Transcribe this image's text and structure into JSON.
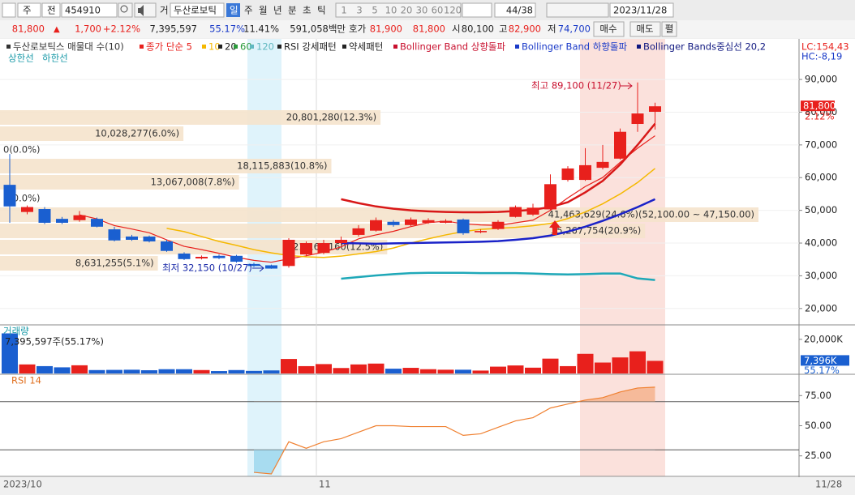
{
  "toolbar": [
    "주",
    "전",
    "454910",
    "거",
    "두산로보틱",
    "일",
    "주",
    "월",
    "년",
    "분",
    "초",
    "틱",
    "1",
    "3",
    "5",
    "10",
    "20",
    "30",
    "60",
    "120",
    "44/38",
    "2023/11/28"
  ],
  "quote": [
    "81,800",
    "▲",
    "1,700",
    "+2.12%",
    "7,395,597",
    "55.17%",
    "11.41%",
    "591,058백만",
    "호가",
    "81,900",
    "81,800",
    "시",
    "80,100",
    "고",
    "82,900",
    "저",
    "74,700",
    "매수",
    "매도",
    "펼"
  ],
  "legend": [
    {
      "text": "두산로보틱스 매물대 수(10)",
      "color": "#333333"
    },
    {
      "text": "종가 단순 5",
      "color": "#e8201c"
    },
    {
      "text": "10",
      "color": "#f5b800"
    },
    {
      "text": "20",
      "color": "#222222"
    },
    {
      "text": "60",
      "color": "#2a9a3a"
    },
    {
      "text": "120",
      "color": "#60b8c0"
    },
    {
      "text": "RSI 강세패턴",
      "color": "#222222"
    },
    {
      "text": "약세패턴",
      "color": "#222222"
    },
    {
      "text": "Bollinger Band 상향돌파",
      "color": "#c8102e"
    },
    {
      "text": "Bollinger Band 하향돌파",
      "color": "#1a3ac8"
    },
    {
      "text": "Bollinger Bands중심선 20,2",
      "color": "#101880"
    }
  ],
  "legend2": [
    "상한선",
    "하한선"
  ],
  "corner": [
    "LC:154,43",
    "HC:-8,19"
  ],
  "price_chart": {
    "type": "candlestick",
    "ylim": [
      15000,
      102400
    ],
    "yticks": [
      {
        "value": 90000,
        "label": "90,000"
      },
      {
        "value": 80000,
        "label": "80,000"
      },
      {
        "value": 70000,
        "label": "70,000"
      },
      {
        "value": 60000,
        "label": "60,000"
      },
      {
        "value": 50000,
        "label": "50,000"
      },
      {
        "value": 40000,
        "label": "40,000"
      },
      {
        "value": 30000,
        "label": "30,000"
      },
      {
        "value": 20000,
        "label": "20,000"
      }
    ],
    "up_color": "#e8201c",
    "down_color": "#1a5fd0",
    "open": [
      57800,
      49500,
      50400,
      47400,
      47000,
      47400,
      44200,
      42000,
      42000,
      40500,
      36800,
      35300,
      36100,
      36100,
      33600,
      33200,
      33000,
      36500,
      37000,
      40000,
      42500,
      43800,
      46500,
      45500,
      46200,
      46200,
      47200,
      43300,
      44300,
      48000,
      48700,
      50300,
      59300,
      59300,
      63000,
      65800,
      76400,
      80100
    ],
    "high": [
      67200,
      51500,
      51000,
      48000,
      49800,
      47800,
      45000,
      42500,
      42300,
      41000,
      37200,
      36200,
      36500,
      36400,
      34000,
      33400,
      41500,
      40500,
      41000,
      42000,
      45500,
      47800,
      47000,
      47800,
      47600,
      47300,
      47500,
      44200,
      47000,
      51500,
      52000,
      61000,
      63500,
      69000,
      70000,
      75000,
      89100,
      82900
    ],
    "low": [
      46200,
      48800,
      45800,
      45800,
      46500,
      44800,
      40500,
      40700,
      40200,
      37300,
      34800,
      35000,
      35100,
      34000,
      32700,
      32150,
      32500,
      36000,
      36600,
      39500,
      42000,
      43500,
      45000,
      45200,
      45900,
      46000,
      42500,
      43000,
      44000,
      47800,
      48300,
      50000,
      58800,
      59000,
      62500,
      65500,
      74000,
      74700
    ],
    "close": [
      51200,
      51000,
      46200,
      46200,
      48500,
      45000,
      40800,
      41000,
      40500,
      37600,
      35100,
      35800,
      35400,
      34300,
      33000,
      32200,
      41000,
      40000,
      40000,
      41000,
      44500,
      47000,
      45500,
      47200,
      47000,
      46800,
      43000,
      43700,
      46500,
      51000,
      50800,
      58000,
      62800,
      63800,
      64800,
      74000,
      79600,
      81800
    ],
    "lines": [
      {
        "color": "#e8201c",
        "width": 1.2,
        "values": [
          null,
          null,
          null,
          null,
          48620,
          47380,
          45340,
          44300,
          43160,
          40980,
          39000,
          38000,
          36880,
          35640,
          34720,
          34140,
          35180,
          36100,
          37240,
          38840,
          41300,
          42500,
          43600,
          45040,
          46240,
          46700,
          45900,
          45540,
          45400,
          46200,
          47000,
          50000,
          53820,
          57280,
          60040,
          64680,
          69000,
          72800
        ]
      },
      {
        "color": "#f5b800",
        "width": 1.5,
        "values": [
          null,
          null,
          null,
          null,
          null,
          null,
          null,
          null,
          null,
          44500,
          43500,
          42000,
          40500,
          39300,
          38000,
          37000,
          36200,
          35800,
          35600,
          36000,
          36700,
          37400,
          38500,
          40000,
          41300,
          42500,
          43500,
          44200,
          44500,
          44800,
          45300,
          46000,
          47500,
          49500,
          52000,
          55000,
          58500,
          62800
        ]
      },
      {
        "color": "#d81818",
        "width": 2.5,
        "values": [
          null,
          null,
          null,
          null,
          null,
          null,
          null,
          null,
          null,
          null,
          null,
          null,
          null,
          null,
          null,
          null,
          null,
          null,
          null,
          53400,
          52200,
          51200,
          50500,
          50000,
          49700,
          49500,
          49400,
          49400,
          49500,
          49800,
          50200,
          51000,
          52500,
          55500,
          59000,
          64000,
          70000,
          76500
        ]
      },
      {
        "color": "#1a22c8",
        "width": 2.5,
        "values": [
          null,
          null,
          null,
          null,
          null,
          null,
          null,
          null,
          null,
          null,
          null,
          null,
          null,
          null,
          null,
          null,
          null,
          null,
          null,
          40000,
          39900,
          39800,
          39900,
          40000,
          40100,
          40200,
          40300,
          40400,
          40600,
          41000,
          41500,
          42300,
          43500,
          45000,
          46800,
          48800,
          51000,
          53400
        ]
      },
      {
        "color": "#1ea8b8",
        "width": 2.5,
        "values": [
          null,
          null,
          null,
          null,
          null,
          null,
          null,
          null,
          null,
          null,
          null,
          null,
          null,
          null,
          null,
          null,
          null,
          null,
          null,
          29100,
          29600,
          30100,
          30500,
          30800,
          30900,
          30900,
          30900,
          30800,
          30800,
          30800,
          30700,
          30500,
          30400,
          30500,
          30700,
          30700,
          29200,
          28700
        ]
      }
    ],
    "profile": [
      {
        "value": 20801280,
        "label": "20,801,280(12.3%)"
      },
      {
        "value": 10028277,
        "label": "10,028,277(6.0%)"
      },
      {
        "value": 0,
        "label": "0(0.0%)"
      },
      {
        "value": 18115883,
        "label": "18,115,883(10.8%)"
      },
      {
        "value": 13067008,
        "label": "13,067,008(7.8%)"
      },
      {
        "value": 0,
        "label": "0(0.0%)"
      },
      {
        "value": 41463629,
        "label": "41,463,629(24.6%)(52,100.00 ~ 47,150.00)"
      },
      {
        "value": 35267754,
        "label": "35,267,754(20.9%)"
      },
      {
        "value": 21168160,
        "label": "21,168,160(12.5%)"
      },
      {
        "value": 8631255,
        "label": "8,631,255(5.1%)"
      }
    ],
    "current": {
      "value": 81800,
      "label": "81,800",
      "change": "2.12%"
    },
    "high_note": "최고 89,100 (11/27)",
    "low_note": "최저 32,150 (10/27)"
  },
  "volume_chart": {
    "type": "bar",
    "title": "거래량",
    "subtitle": "7,395,597주(55.17%)",
    "ylim": [
      0,
      28000
    ],
    "yticks": [
      {
        "value": 20000,
        "label": "20,000K"
      }
    ],
    "values": [
      23500,
      5300,
      4300,
      3600,
      4800,
      2000,
      2100,
      2200,
      1900,
      2500,
      2500,
      2000,
      1400,
      2000,
      1500,
      1800,
      8500,
      4300,
      5500,
      3200,
      5300,
      5800,
      2800,
      3300,
      2500,
      2200,
      2200,
      1700,
      4000,
      4700,
      3400,
      8700,
      4300,
      11500,
      6400,
      9400,
      13000,
      7395.597
    ],
    "current_label": "7,396K",
    "current_pct": "55.17%"
  },
  "rsi_chart": {
    "type": "line",
    "title": "RSI 14",
    "color": "#f08030",
    "ylim": [
      8,
      92
    ],
    "yticks": [
      {
        "value": 75,
        "label": "75.00"
      },
      {
        "value": 50,
        "label": "50.00"
      },
      {
        "value": 25,
        "label": "25.00"
      }
    ],
    "levels": [
      70,
      30
    ],
    "values": [
      null,
      null,
      null,
      null,
      null,
      null,
      null,
      null,
      null,
      null,
      null,
      null,
      null,
      null,
      11.3,
      10,
      36.7,
      31.3,
      36.7,
      39.3,
      44.7,
      50,
      50,
      49.3,
      49.3,
      49.3,
      42,
      43.3,
      48.7,
      54,
      56.7,
      64.7,
      68,
      71.3,
      73.3,
      78,
      81.3,
      82
    ]
  },
  "xaxis": [
    "2023/10",
    "11",
    "11/28"
  ]
}
